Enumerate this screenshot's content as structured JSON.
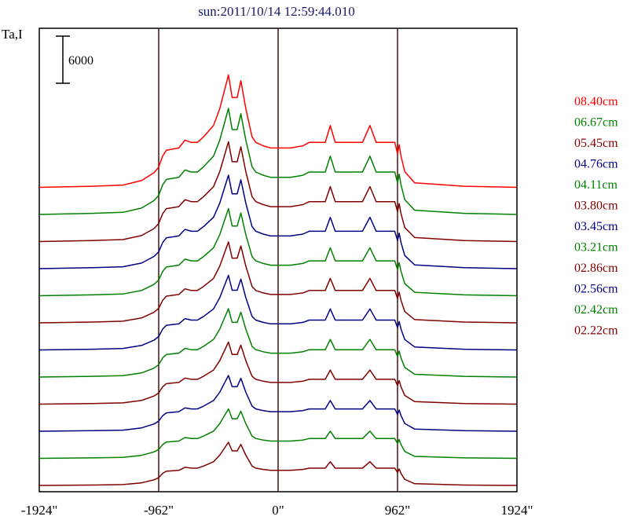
{
  "chart_data": {
    "type": "line",
    "title": "sun:2011/10/14 12:59:44.010",
    "ylabel": "Ta,I",
    "xlabel": "",
    "xlim": [
      -1924,
      1924
    ],
    "x_ticks": [
      -1924,
      -962,
      0,
      962,
      1924
    ],
    "x_tick_labels": [
      "-1924\"",
      "-962\"",
      "0\"",
      "962\"",
      "1924\""
    ],
    "vertical_lines": [
      -962,
      0,
      962
    ],
    "scale_bar_label": "6000",
    "grid": false,
    "legend_position": "right",
    "series": [
      {
        "name": "08.40cm",
        "color": "#ff0000"
      },
      {
        "name": "06.67cm",
        "color": "#008000"
      },
      {
        "name": "05.45cm",
        "color": "#800000"
      },
      {
        "name": "04.76cm",
        "color": "#000080"
      },
      {
        "name": "04.11cm",
        "color": "#008000"
      },
      {
        "name": "03.80cm",
        "color": "#800000"
      },
      {
        "name": "03.45cm",
        "color": "#000080"
      },
      {
        "name": "03.21cm",
        "color": "#008000"
      },
      {
        "name": "02.86cm",
        "color": "#800000"
      },
      {
        "name": "02.56cm",
        "color": "#000080"
      },
      {
        "name": "02.42cm",
        "color": "#008000"
      },
      {
        "name": "02.22cm",
        "color": "#800000"
      }
    ],
    "profile_x": [
      -1924,
      -1500,
      -1250,
      -1100,
      -1000,
      -962,
      -930,
      -900,
      -800,
      -750,
      -700,
      -650,
      -600,
      -520,
      -470,
      -400,
      -370,
      -330,
      -300,
      -260,
      -240,
      -210,
      -180,
      -120,
      -60,
      0,
      100,
      200,
      250,
      300,
      380,
      420,
      460,
      520,
      600,
      680,
      740,
      790,
      900,
      940,
      962,
      975,
      990,
      1020,
      1100,
      1500,
      1924
    ],
    "profile_rel": [
      0,
      0.01,
      0.02,
      0.06,
      0.13,
      0.18,
      0.28,
      0.33,
      0.35,
      0.42,
      0.4,
      0.4,
      0.45,
      0.55,
      0.7,
      1.0,
      0.8,
      0.8,
      0.95,
      0.7,
      0.6,
      0.45,
      0.4,
      0.37,
      0.35,
      0.35,
      0.35,
      0.37,
      0.4,
      0.4,
      0.4,
      0.55,
      0.4,
      0.4,
      0.4,
      0.4,
      0.55,
      0.4,
      0.4,
      0.4,
      0.3,
      0.38,
      0.28,
      0.14,
      0.04,
      0.01,
      0
    ]
  }
}
